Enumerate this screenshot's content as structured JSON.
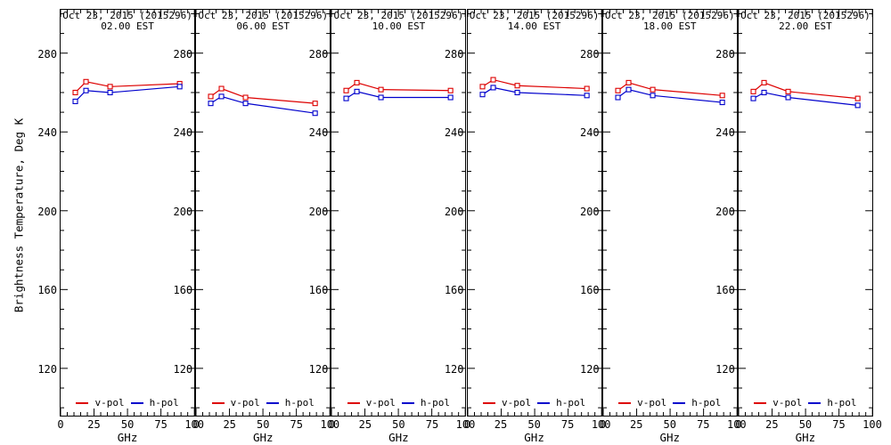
{
  "figure": {
    "y_axis_title": "Brightness Temperature, Deg K",
    "x_axis_title": "GHz",
    "legend": {
      "v_label": "v-pol",
      "h_label": "h-pol"
    },
    "colors": {
      "v_pol": "#dd0000",
      "h_pol": "#0000cc",
      "axis": "#000000",
      "background": "#ffffff"
    }
  },
  "chart_data": {
    "type": "line",
    "title": "Oct 23, 2015 (2015296)",
    "xlabel": "GHz",
    "ylabel": "Brightness Temperature, Deg K",
    "x": [
      11,
      19,
      37,
      89
    ],
    "xlim": [
      0,
      100
    ],
    "ylim": [
      96,
      302
    ],
    "x_major_ticks": [
      0,
      25,
      50,
      75,
      100
    ],
    "x_minor_step": 5,
    "y_major_ticks": [
      120,
      160,
      200,
      240,
      280
    ],
    "y_minor_step": 10,
    "grid": false,
    "legend_position": "bottom-center-inside",
    "series_labels": [
      "v-pol",
      "h-pol"
    ],
    "panels": [
      {
        "title": "Oct 23, 2015 (2015296)",
        "subtitle": "02.00 EST",
        "v_pol": [
          260.0,
          265.5,
          263.0,
          264.5
        ],
        "h_pol": [
          255.5,
          261.0,
          260.0,
          263.0
        ]
      },
      {
        "title": "Oct 23, 2015 (2015296)",
        "subtitle": "06.00 EST",
        "v_pol": [
          258.0,
          262.0,
          257.5,
          254.5
        ],
        "h_pol": [
          254.5,
          258.0,
          254.5,
          249.5
        ]
      },
      {
        "title": "Oct 23, 2015 (2015296)",
        "subtitle": "10.00 EST",
        "v_pol": [
          261.0,
          265.0,
          261.5,
          261.0
        ],
        "h_pol": [
          257.0,
          260.5,
          257.5,
          257.5
        ]
      },
      {
        "title": "Oct 23, 2015 (2015296)",
        "subtitle": "14.00 EST",
        "v_pol": [
          263.0,
          266.5,
          263.5,
          262.0
        ],
        "h_pol": [
          259.0,
          262.5,
          260.0,
          258.5
        ]
      },
      {
        "title": "Oct 23, 2015 (2015296)",
        "subtitle": "18.00 EST",
        "v_pol": [
          261.0,
          265.0,
          261.5,
          258.5
        ],
        "h_pol": [
          257.5,
          261.5,
          258.5,
          255.0
        ]
      },
      {
        "title": "Oct 23, 2015 (2015296)",
        "subtitle": "22.00 EST",
        "v_pol": [
          260.5,
          265.0,
          260.5,
          257.0
        ],
        "h_pol": [
          257.0,
          260.0,
          257.5,
          253.5
        ]
      }
    ]
  }
}
